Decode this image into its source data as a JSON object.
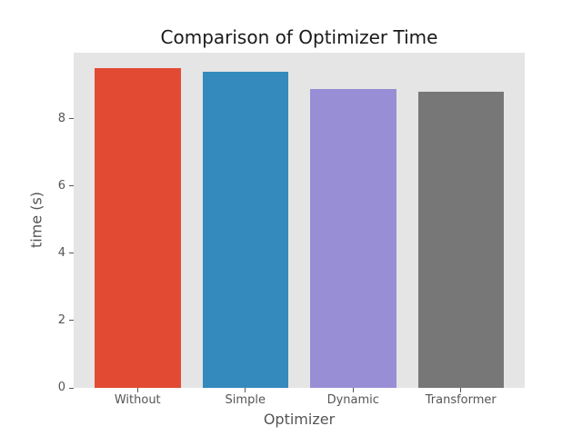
{
  "chart_data": {
    "type": "bar",
    "title": "Comparison of Optimizer Time",
    "xlabel": "Optimizer",
    "ylabel": "time (s)",
    "categories": [
      "Without",
      "Simple",
      "Dynamic",
      "Transformer"
    ],
    "values": [
      9.5,
      9.4,
      8.9,
      8.8
    ],
    "bar_colors": [
      "#E24A33",
      "#348ABD",
      "#988ED5",
      "#777777"
    ],
    "yticks": [
      0,
      2,
      4,
      6,
      8
    ],
    "ylim": [
      0,
      9.97
    ],
    "grid": false,
    "legend": null,
    "plot_background": "#E5E5E5",
    "figure_background": "#FFFFFF",
    "tick_label_color": "#555555",
    "title_color": "#1A1A1A"
  }
}
